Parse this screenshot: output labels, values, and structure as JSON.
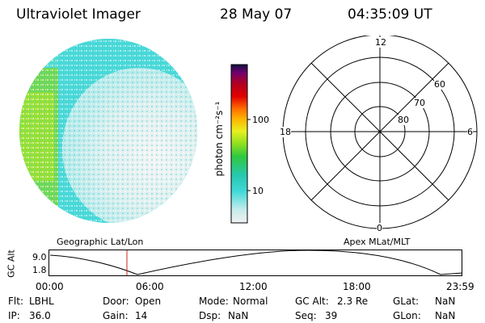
{
  "header": {
    "instrument": "Ultraviolet Imager",
    "date": "28 May 07",
    "time": "04:35:09 UT"
  },
  "colorbar": {
    "label": "photon cm⁻²s⁻¹",
    "ticks": [
      "100",
      "10"
    ],
    "colors": [
      "#f0f0f0",
      "#c8ecec",
      "#40d8d8",
      "#28c8b0",
      "#30c840",
      "#90e020",
      "#e8f020",
      "#ffb000",
      "#ff7000",
      "#e00000",
      "#b00020",
      "#700070",
      "#101040"
    ]
  },
  "polar_plot": {
    "mlt_labels": [
      "12",
      "18",
      "6",
      "0"
    ],
    "lat_labels": [
      "60",
      "70",
      "80"
    ]
  },
  "timeline": {
    "left_label": "Geographic Lat/Lon",
    "right_label": "Apex MLat/MLT",
    "axis_label": "GC Alt",
    "y_max": "9.0",
    "y_min": "1.8",
    "x_ticks": [
      "00:00",
      "06:00",
      "12:00",
      "18:00",
      "23:59"
    ],
    "marker_time": "04:35"
  },
  "info": {
    "filter_label": "Flt:",
    "filter_value": "LBHL",
    "door_label": "Door:",
    "door_value": "Open",
    "mode_label": "Mode:",
    "mode_value": "Normal",
    "gcalt_label": "GC Alt:",
    "gcalt_value": "2.3 Re",
    "glat_label": "GLat:",
    "glat_value": "NaN",
    "ip_label": "IP:",
    "ip_value": "36.0",
    "gain_label": "Gain:",
    "gain_value": "14",
    "dsp_label": "Dsp:",
    "dsp_value": "NaN",
    "seq_label": "Seq:",
    "seq_value": "39",
    "glon_label": "GLon:",
    "glon_value": "NaN"
  }
}
